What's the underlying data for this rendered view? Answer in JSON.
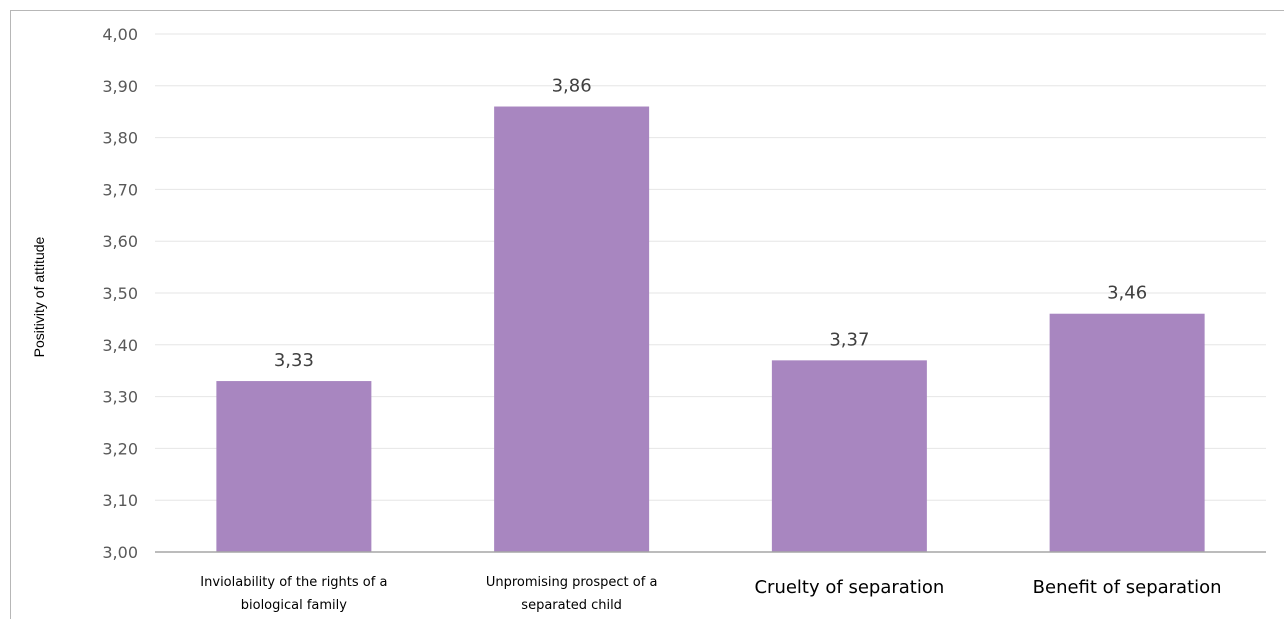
{
  "chart_data": {
    "type": "bar",
    "title": "",
    "xlabel": "",
    "ylabel": "Positivity of attitude",
    "ylim": [
      3.0,
      4.0
    ],
    "yticks": [
      "3,00",
      "3,10",
      "3,20",
      "3,30",
      "3,40",
      "3,50",
      "3,60",
      "3,70",
      "3,80",
      "3,90",
      "4,00"
    ],
    "categories": [
      [
        "Inviolability of the rights of a",
        "biological family"
      ],
      [
        "Unpromising prospect of a",
        "separated child"
      ],
      [
        "Cruelty of separation"
      ],
      [
        "Benefit of separation"
      ]
    ],
    "values": [
      3.33,
      3.86,
      3.37,
      3.46
    ],
    "data_labels": [
      "3,33",
      "3,86",
      "3,37",
      "3,46"
    ],
    "bar_color": "#a886c0",
    "grid": true,
    "legend": "none"
  }
}
